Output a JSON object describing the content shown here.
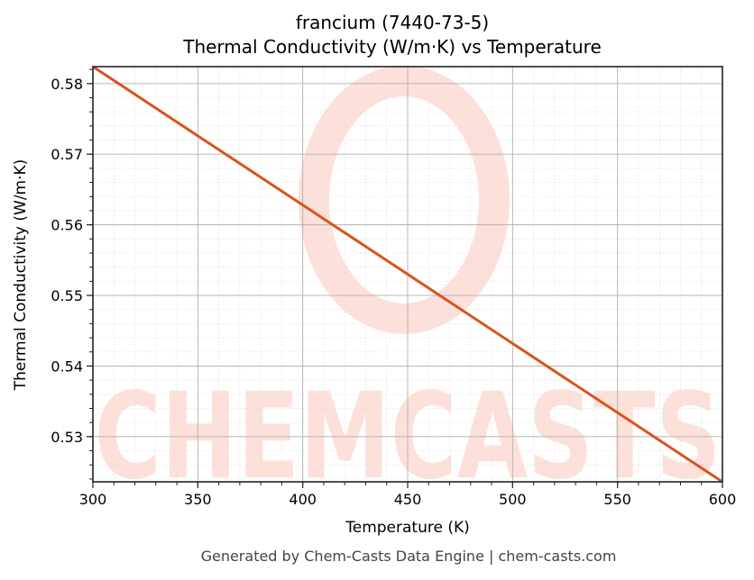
{
  "header": {
    "title_line1": "francium (7440-73-5)",
    "title_line2": "Thermal Conductivity (W/m·K) vs Temperature"
  },
  "footer": {
    "text": "Generated by Chem-Casts Data Engine | chem-casts.com"
  },
  "watermark": {
    "text": "CHEMCASTS",
    "color": "#fde0da"
  },
  "colors": {
    "line": "#d9531e",
    "major_grid": "#b0b0b0",
    "minor_grid": "#e0e0e0",
    "axis": "#222222"
  },
  "chart_data": {
    "type": "line",
    "title": "francium (7440-73-5)\nThermal Conductivity (W/m·K) vs Temperature",
    "xlabel": "Temperature (K)",
    "ylabel": "Thermal Conductivity (W/m·K)",
    "xlim": [
      300,
      600
    ],
    "ylim": [
      0.5236,
      0.5824
    ],
    "xticks": [
      300,
      350,
      400,
      450,
      500,
      550,
      600
    ],
    "xtick_labels": [
      "300",
      "350",
      "400",
      "450",
      "500",
      "550",
      "600"
    ],
    "yticks": [
      0.53,
      0.54,
      0.55,
      0.56,
      0.57,
      0.58
    ],
    "ytick_labels": [
      "0.53",
      "0.54",
      "0.55",
      "0.56",
      "0.57",
      "0.58"
    ],
    "grid": true,
    "legend": null,
    "series": [
      {
        "name": "Thermal Conductivity",
        "x": [
          300,
          350,
          400,
          450,
          500,
          550,
          600
        ],
        "values": [
          0.5824,
          0.5726,
          0.5628,
          0.553,
          0.5432,
          0.5334,
          0.5236
        ]
      }
    ]
  }
}
